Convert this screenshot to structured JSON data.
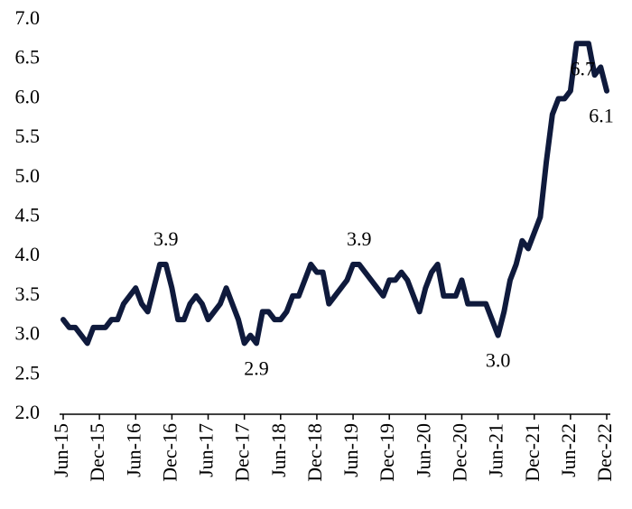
{
  "chart_data": {
    "type": "line",
    "categories": [
      "Jun-15",
      null,
      null,
      null,
      null,
      null,
      "Dec-15",
      null,
      null,
      null,
      null,
      null,
      "Jun-16",
      null,
      null,
      null,
      null,
      null,
      "Dec-16",
      null,
      null,
      null,
      null,
      null,
      "Jun-17",
      null,
      null,
      null,
      null,
      null,
      "Dec-17",
      null,
      null,
      null,
      null,
      null,
      "Jun-18",
      null,
      null,
      null,
      null,
      null,
      "Dec-18",
      null,
      null,
      null,
      null,
      null,
      "Jun-19",
      null,
      null,
      null,
      null,
      null,
      "Dec-19",
      null,
      null,
      null,
      null,
      null,
      "Jun-20",
      null,
      null,
      null,
      null,
      null,
      "Dec-20",
      null,
      null,
      null,
      null,
      null,
      "Jun-21",
      null,
      null,
      null,
      null,
      null,
      "Dec-21",
      null,
      null,
      null,
      null,
      null,
      "Jun-22",
      null,
      null,
      null,
      null,
      null,
      "Dec-22"
    ],
    "values": [
      3.2,
      3.1,
      3.1,
      3.0,
      2.9,
      3.1,
      3.1,
      3.1,
      3.2,
      3.2,
      3.4,
      3.5,
      3.6,
      3.4,
      3.3,
      3.6,
      3.9,
      3.9,
      3.6,
      3.2,
      3.2,
      3.4,
      3.5,
      3.4,
      3.2,
      3.3,
      3.4,
      3.6,
      3.4,
      3.2,
      2.9,
      3.0,
      2.9,
      3.3,
      3.3,
      3.2,
      3.2,
      3.3,
      3.5,
      3.5,
      3.7,
      3.9,
      3.8,
      3.8,
      3.4,
      3.5,
      3.6,
      3.7,
      3.9,
      3.9,
      3.8,
      3.7,
      3.6,
      3.5,
      3.7,
      3.7,
      3.8,
      3.7,
      3.5,
      3.3,
      3.6,
      3.8,
      3.9,
      3.5,
      3.5,
      3.5,
      3.7,
      3.4,
      3.4,
      3.4,
      3.4,
      3.2,
      3.0,
      3.3,
      3.7,
      3.9,
      4.2,
      4.1,
      4.3,
      4.5,
      5.2,
      5.8,
      6.0,
      6.0,
      6.1,
      6.7,
      6.7,
      6.7,
      6.3,
      6.4,
      6.1
    ],
    "value_labels": [
      null,
      null,
      null,
      null,
      null,
      null,
      null,
      null,
      null,
      null,
      null,
      null,
      null,
      null,
      null,
      null,
      null,
      "3.9",
      null,
      null,
      null,
      null,
      null,
      null,
      null,
      null,
      null,
      null,
      null,
      null,
      null,
      null,
      "2.9",
      null,
      null,
      null,
      null,
      null,
      null,
      null,
      null,
      null,
      null,
      null,
      null,
      null,
      null,
      null,
      null,
      "3.9",
      null,
      null,
      null,
      null,
      null,
      null,
      null,
      null,
      null,
      null,
      null,
      null,
      null,
      null,
      null,
      null,
      null,
      null,
      null,
      null,
      null,
      null,
      "3.0",
      null,
      null,
      null,
      null,
      null,
      null,
      null,
      null,
      null,
      null,
      null,
      null,
      null,
      "6.7",
      null,
      null,
      null,
      "6.1"
    ],
    "color": "#0f1a3c",
    "ylim": [
      2.0,
      7.0
    ],
    "yticks": [
      {
        "value": 2.0,
        "label": "2.0"
      },
      2.5,
      {
        "value": 3.0,
        "label": "3.0"
      },
      3.5,
      {
        "value": 4.0,
        "label": "4.0"
      },
      4.5,
      {
        "value": 5.0,
        "label": "5.0"
      },
      5.5,
      {
        "value": 6.0,
        "label": "6.0"
      },
      6.5,
      {
        "value": 7.0,
        "label": "7.0"
      }
    ],
    "grid": false
  }
}
